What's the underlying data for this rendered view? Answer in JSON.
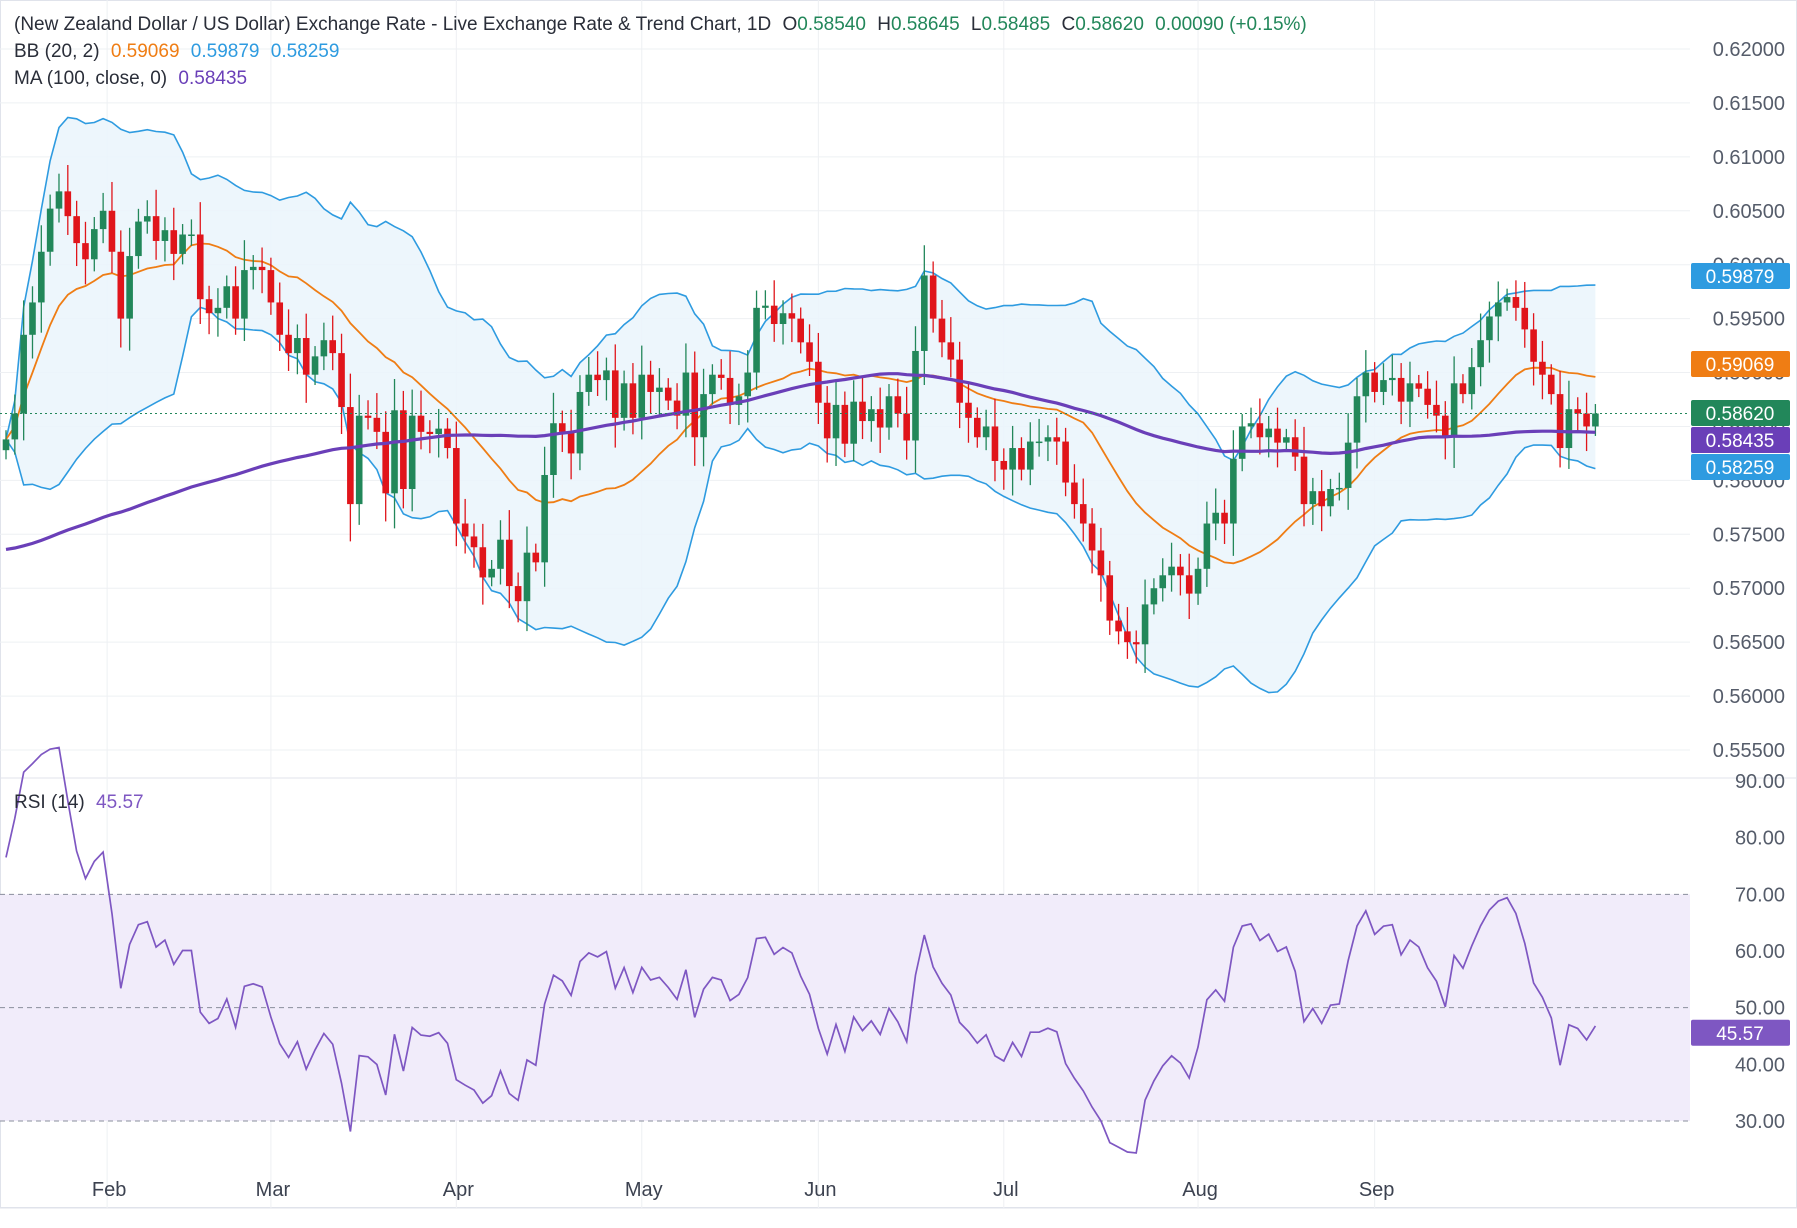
{
  "header": {
    "title": "(New Zealand Dollar / US Dollar) Exchange Rate - Live Exchange Rate & Trend Chart, 1D",
    "ohlc": {
      "o_label": "O",
      "o": "0.58540",
      "h_label": "H",
      "h": "0.58645",
      "l_label": "L",
      "l": "0.58485",
      "c_label": "C",
      "c": "0.58620",
      "change": "0.00090 (+0.15%)"
    },
    "bb_label": "BB (20, 2)",
    "bb_values": [
      "0.59069",
      "0.59879",
      "0.58259"
    ],
    "ma_label": "MA (100, close, 0)",
    "ma_value": "0.58435",
    "rsi_label": "RSI (14)",
    "rsi_value": "45.57"
  },
  "colors": {
    "up": "#22875a",
    "down": "#e0151b",
    "bb_basis": "#ef7d14",
    "bb_band": "#2e9be0",
    "bb_fill": "#eaf4fc",
    "ma": "#6a3fb8",
    "rsi": "#7e57c2",
    "rsi_zone": "#f1ecfa",
    "grid": "#eef0f3"
  },
  "chart_data": [
    {
      "type": "candlestick",
      "title": "(New Zealand Dollar / US Dollar) Exchange Rate - Live Exchange Rate & Trend Chart, 1D",
      "x_ticks": [
        "Feb",
        "Mar",
        "Apr",
        "May",
        "Jun",
        "Jul",
        "Aug",
        "Sep"
      ],
      "x_tick_days": [
        11,
        30,
        51,
        72,
        92,
        113,
        135,
        155
      ],
      "y_ticks": [
        "0.55500",
        "0.56000",
        "0.56500",
        "0.57000",
        "0.57500",
        "0.58000",
        "0.58500",
        "0.59000",
        "0.59500",
        "0.60000",
        "0.60500",
        "0.61000",
        "0.61500",
        "0.62000"
      ],
      "ylim": [
        0.5525,
        0.6225
      ],
      "xlim": [
        0,
        180
      ],
      "last_close": 0.5862,
      "price_labels": [
        {
          "text": "0.59879",
          "value": 0.59879,
          "role": "bb_upper"
        },
        {
          "text": "0.59069",
          "value": 0.59069,
          "role": "bb_basis"
        },
        {
          "text": "0.58620",
          "value": 0.5862,
          "role": "close"
        },
        {
          "text": "0.58435",
          "value": 0.58435,
          "role": "ma"
        },
        {
          "text": "0.58259",
          "value": 0.58259,
          "role": "bb_lower"
        }
      ],
      "close": [
        0.5838,
        0.5862,
        0.5935,
        0.5965,
        0.6012,
        0.6052,
        0.6068,
        0.6045,
        0.602,
        0.6005,
        0.6033,
        0.605,
        0.6012,
        0.595,
        0.6008,
        0.604,
        0.6045,
        0.6022,
        0.6032,
        0.601,
        0.6028,
        0.6028,
        0.5968,
        0.5955,
        0.596,
        0.598,
        0.595,
        0.5995,
        0.5998,
        0.5995,
        0.5965,
        0.5935,
        0.5918,
        0.5932,
        0.5898,
        0.5915,
        0.593,
        0.5918,
        0.5868,
        0.5778,
        0.586,
        0.5858,
        0.5845,
        0.5788,
        0.5865,
        0.5792,
        0.586,
        0.5845,
        0.5843,
        0.5848,
        0.583,
        0.576,
        0.5748,
        0.5738,
        0.571,
        0.5718,
        0.5745,
        0.5702,
        0.5688,
        0.5733,
        0.5724,
        0.5805,
        0.5853,
        0.5845,
        0.5825,
        0.5882,
        0.5898,
        0.5893,
        0.5902,
        0.5858,
        0.589,
        0.5858,
        0.5898,
        0.5882,
        0.5886,
        0.5874,
        0.586,
        0.59,
        0.584,
        0.588,
        0.5898,
        0.5895,
        0.587,
        0.5878,
        0.59,
        0.596,
        0.5962,
        0.5945,
        0.5955,
        0.595,
        0.5928,
        0.591,
        0.5872,
        0.5839,
        0.587,
        0.5834,
        0.5873,
        0.5855,
        0.5866,
        0.5849,
        0.5878,
        0.5862,
        0.5837,
        0.592,
        0.599,
        0.595,
        0.5928,
        0.5912,
        0.5872,
        0.5858,
        0.584,
        0.585,
        0.5818,
        0.581,
        0.583,
        0.581,
        0.5836,
        0.5836,
        0.584,
        0.5836,
        0.5798,
        0.5778,
        0.576,
        0.5735,
        0.5712,
        0.567,
        0.566,
        0.565,
        0.5648,
        0.5685,
        0.57,
        0.5712,
        0.572,
        0.5712,
        0.5695,
        0.5718,
        0.576,
        0.577,
        0.576,
        0.582,
        0.585,
        0.5853,
        0.584,
        0.5848,
        0.5835,
        0.584,
        0.5822,
        0.5778,
        0.579,
        0.5776,
        0.5792,
        0.5793,
        0.5835,
        0.5878,
        0.59,
        0.5882,
        0.5893,
        0.5895,
        0.5873,
        0.589,
        0.5885,
        0.587,
        0.586,
        0.584,
        0.589,
        0.588,
        0.5905,
        0.593,
        0.5952,
        0.5965,
        0.597,
        0.596,
        0.594,
        0.591,
        0.5898,
        0.588,
        0.583,
        0.5866,
        0.5862,
        0.585,
        0.5862
      ],
      "bollinger_bands": {
        "period": 20,
        "stddev": 2,
        "basis": 0.59069,
        "upper": 0.59879,
        "lower": 0.58259
      },
      "moving_average": {
        "period": 100,
        "source": "close",
        "value": 0.58435
      }
    },
    {
      "type": "line",
      "title": "RSI (14)",
      "y_ticks": [
        "30.00",
        "40.00",
        "50.00",
        "60.00",
        "70.00",
        "80.00",
        "90.00"
      ],
      "ylim": [
        30,
        90
      ],
      "reference_lines": [
        30,
        50,
        70
      ],
      "current_value": 45.57
    }
  ]
}
